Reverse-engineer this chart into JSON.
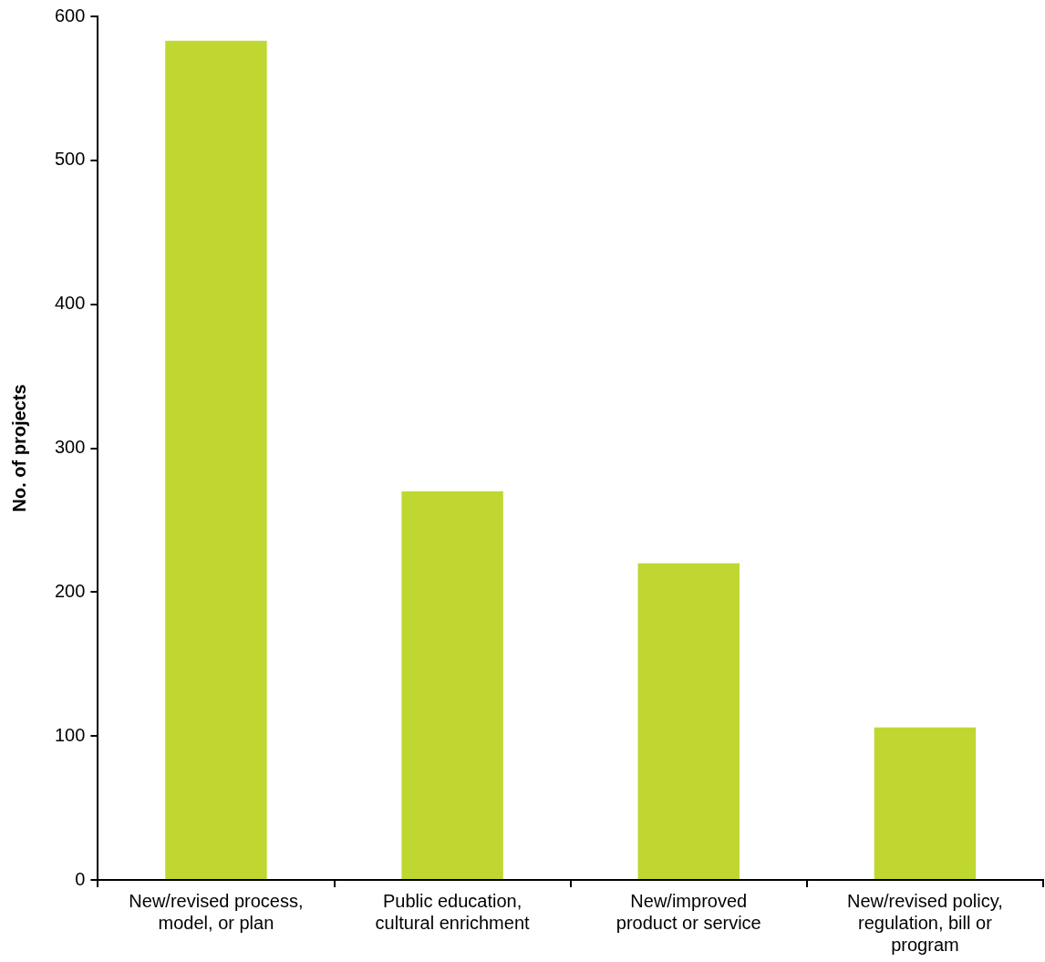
{
  "chart_data": {
    "type": "bar",
    "ylabel": "No. of projects",
    "categories": [
      "New/revised process,\nmodel, or plan",
      "Public education,\ncultural enrichment",
      "New/improved\nproduct or service",
      "New/revised policy,\nregulation, bill or\nprogram"
    ],
    "values": [
      583,
      270,
      220,
      106
    ],
    "color": "#bfd730",
    "ylim": [
      0,
      600
    ],
    "yticks": [
      0,
      100,
      200,
      300,
      400,
      500,
      600
    ],
    "grid": false,
    "legend": false
  }
}
